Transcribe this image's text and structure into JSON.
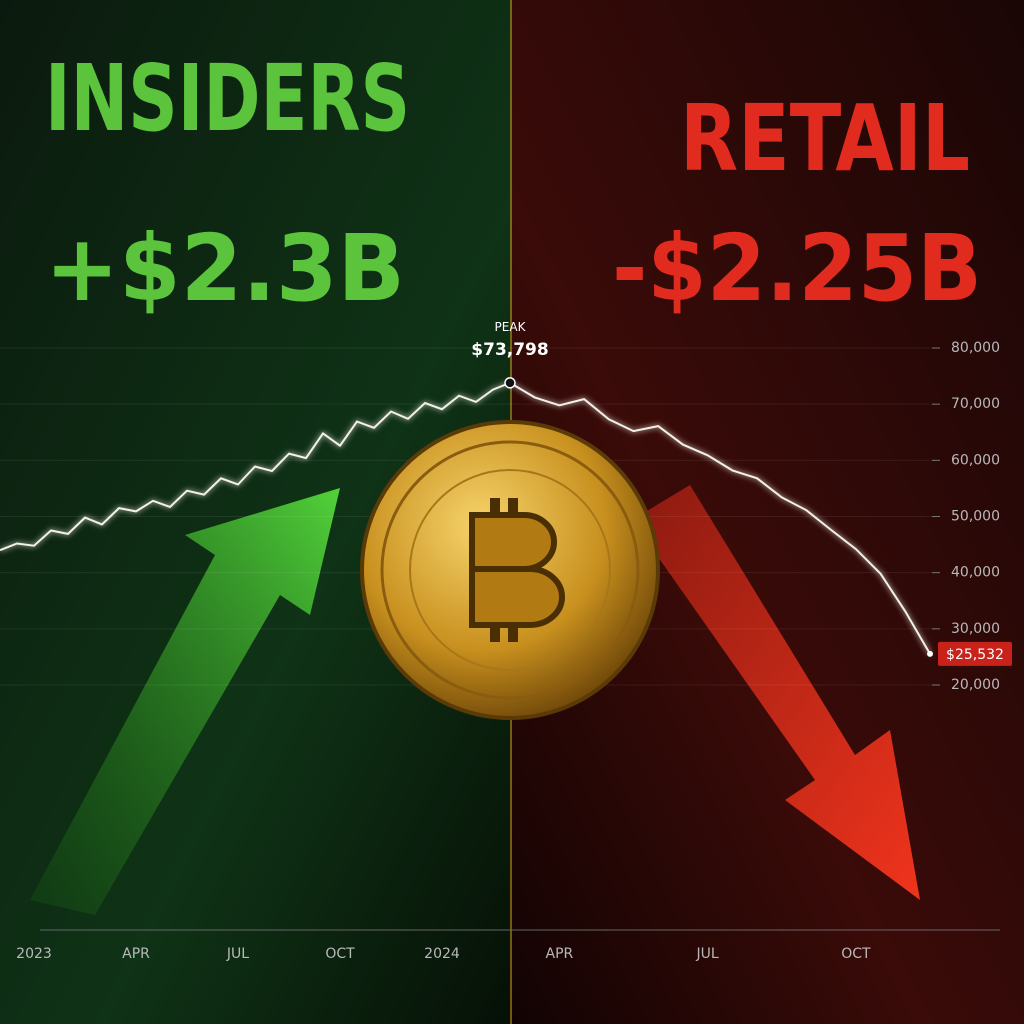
{
  "chart_data": {
    "type": "line",
    "left_title": "INSIDERS",
    "left_amount": "+$2.3B",
    "right_title": "RETAIL",
    "right_amount": "-$2.25B",
    "peak_annotation": "PEAK",
    "categories": [
      null,
      null,
      "2023",
      null,
      null,
      null,
      null,
      null,
      "APR",
      null,
      null,
      null,
      null,
      null,
      "JUL",
      null,
      null,
      null,
      null,
      null,
      "OCT",
      null,
      null,
      null,
      null,
      null,
      "2024",
      null,
      null,
      null,
      null,
      null,
      "APR",
      null,
      null,
      null,
      null,
      null,
      "JUL",
      null,
      null,
      null,
      null,
      null,
      "OCT",
      null,
      null,
      null
    ],
    "series": [
      {
        "name": "BTC",
        "color": "#f3f1e6",
        "values": [
          44000,
          45200,
          44800,
          47500,
          46900,
          49800,
          48600,
          51500,
          50900,
          52800,
          51700,
          54600,
          53900,
          56800,
          55700,
          58900,
          58100,
          61200,
          60400,
          64800,
          62600,
          66900,
          65800,
          68700,
          67400,
          70200,
          69100,
          71500,
          70400,
          72600,
          73798,
          71200,
          69800,
          70900,
          67300,
          65200,
          66100,
          62800,
          60900,
          58200,
          56800,
          53400,
          51100,
          47600,
          44200,
          39800,
          33100,
          25532
        ],
        "value_labels": [
          null,
          null,
          null,
          null,
          null,
          null,
          null,
          null,
          null,
          null,
          null,
          null,
          null,
          null,
          null,
          null,
          null,
          null,
          null,
          null,
          null,
          null,
          null,
          null,
          null,
          null,
          null,
          null,
          null,
          null,
          "$73,798",
          null,
          null,
          null,
          null,
          null,
          null,
          null,
          null,
          null,
          null,
          null,
          null,
          null,
          null,
          null,
          null,
          "$25,532"
        ]
      }
    ],
    "ylim": [
      20000,
      80000
    ],
    "yticks": [
      {
        "value": 20000,
        "label": "20,000"
      },
      {
        "value": 30000,
        "label": "30,000"
      },
      {
        "value": 40000,
        "label": "40,000"
      },
      {
        "value": 50000,
        "label": "50,000"
      },
      {
        "value": 60000,
        "label": "60,000"
      },
      {
        "value": 70000,
        "label": "70,000"
      },
      {
        "value": 80000,
        "label": "80,000"
      }
    ],
    "grid": true
  }
}
